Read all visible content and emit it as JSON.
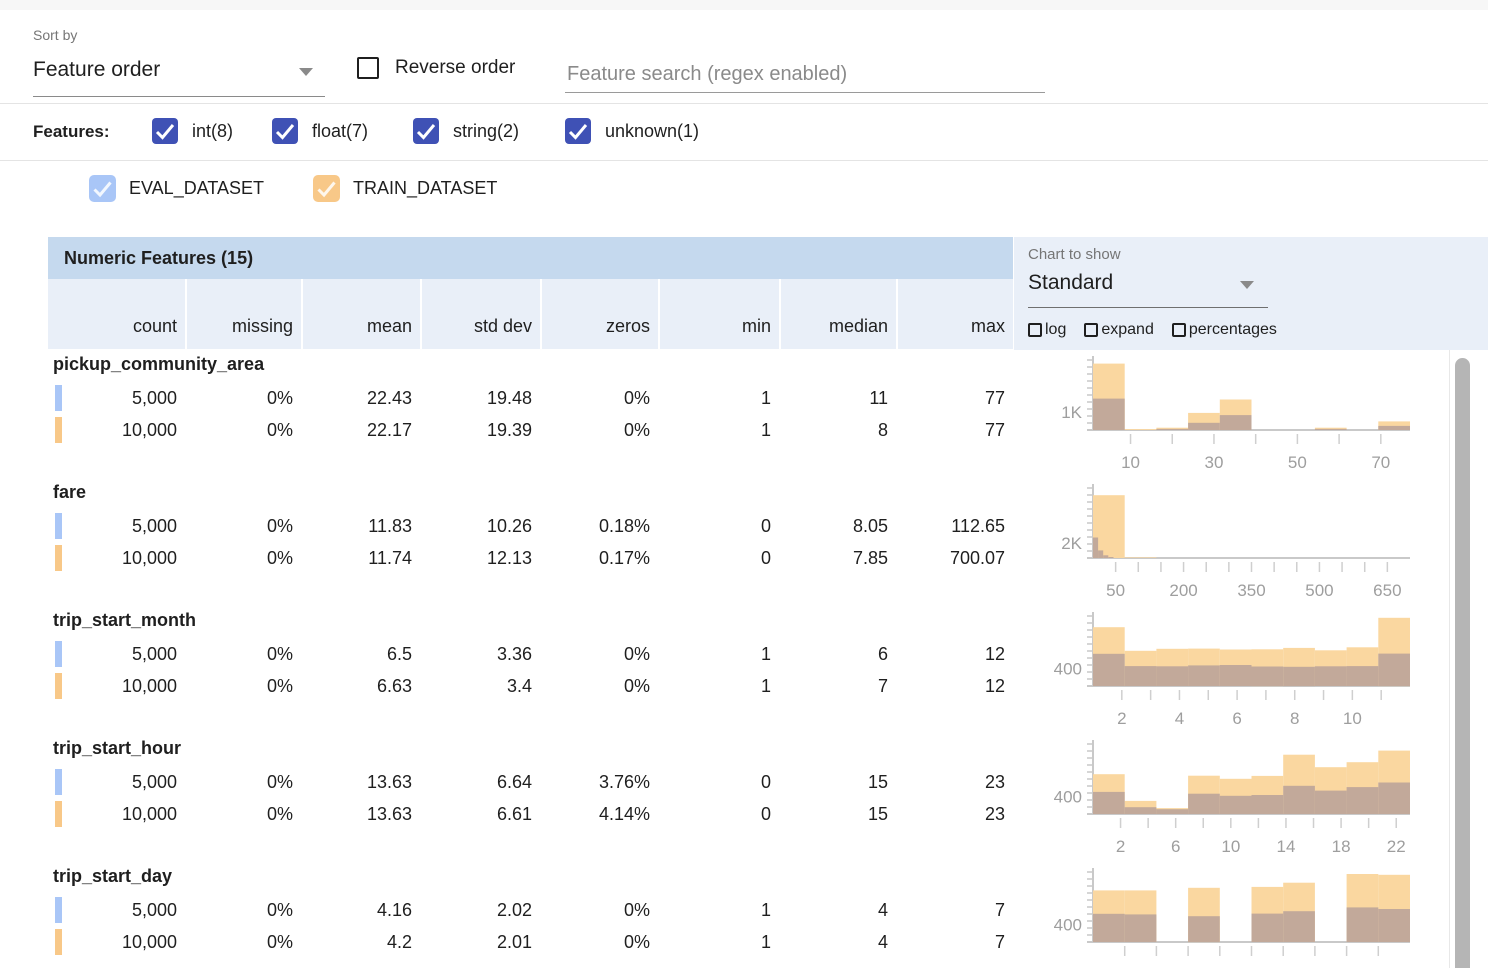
{
  "colors": {
    "accent_indigo": "#3f51b5",
    "eval_dataset": "#a9c6f7",
    "train_dataset": "#f8c888",
    "train_hist": "#fad7a0",
    "overlap_hist": "#c2a99a",
    "table_header_bg": "#c5d9ee",
    "subheader_bg": "#e9eff8",
    "axis_gray": "#c9c9c9",
    "axis_label_gray": "#9e9e9e"
  },
  "toolbar": {
    "sort_by_label": "Sort by",
    "sort_by_value": "Feature order",
    "reverse_order_label": "Reverse order",
    "reverse_order_checked": false,
    "search_placeholder": "Feature search (regex enabled)"
  },
  "filters": {
    "label": "Features:",
    "types": [
      {
        "label": "int(8)",
        "checked": true
      },
      {
        "label": "float(7)",
        "checked": true
      },
      {
        "label": "string(2)",
        "checked": true
      },
      {
        "label": "unknown(1)",
        "checked": true
      }
    ]
  },
  "datasets": [
    {
      "name": "EVAL_DATASET",
      "checked": true,
      "color": "#a9c6f7"
    },
    {
      "name": "TRAIN_DATASET",
      "checked": true,
      "color": "#f8c888"
    }
  ],
  "chart_controls": {
    "label": "Chart to show",
    "selected": "Standard",
    "toggles": [
      {
        "label": "log",
        "checked": false
      },
      {
        "label": "expand",
        "checked": false
      },
      {
        "label": "percentages",
        "checked": false
      }
    ]
  },
  "table": {
    "title": "Numeric Features (15)",
    "columns": [
      "count",
      "missing",
      "mean",
      "std dev",
      "zeros",
      "min",
      "median",
      "max"
    ],
    "features": [
      {
        "name": "pickup_community_area",
        "rows": [
          {
            "dataset": "EVAL_DATASET",
            "values": [
              "5,000",
              "0%",
              "22.43",
              "19.48",
              "0%",
              "1",
              "11",
              "77"
            ]
          },
          {
            "dataset": "TRAIN_DATASET",
            "values": [
              "10,000",
              "0%",
              "22.17",
              "19.39",
              "0%",
              "1",
              "8",
              "77"
            ]
          }
        ]
      },
      {
        "name": "fare",
        "rows": [
          {
            "dataset": "EVAL_DATASET",
            "values": [
              "5,000",
              "0%",
              "11.83",
              "10.26",
              "0.18%",
              "0",
              "8.05",
              "112.65"
            ]
          },
          {
            "dataset": "TRAIN_DATASET",
            "values": [
              "10,000",
              "0%",
              "11.74",
              "12.13",
              "0.17%",
              "0",
              "7.85",
              "700.07"
            ]
          }
        ]
      },
      {
        "name": "trip_start_month",
        "rows": [
          {
            "dataset": "EVAL_DATASET",
            "values": [
              "5,000",
              "0%",
              "6.5",
              "3.36",
              "0%",
              "1",
              "6",
              "12"
            ]
          },
          {
            "dataset": "TRAIN_DATASET",
            "values": [
              "10,000",
              "0%",
              "6.63",
              "3.4",
              "0%",
              "1",
              "7",
              "12"
            ]
          }
        ]
      },
      {
        "name": "trip_start_hour",
        "rows": [
          {
            "dataset": "EVAL_DATASET",
            "values": [
              "5,000",
              "0%",
              "13.63",
              "6.64",
              "3.76%",
              "0",
              "15",
              "23"
            ]
          },
          {
            "dataset": "TRAIN_DATASET",
            "values": [
              "10,000",
              "0%",
              "13.63",
              "6.61",
              "4.14%",
              "0",
              "15",
              "23"
            ]
          }
        ]
      },
      {
        "name": "trip_start_day",
        "rows": [
          {
            "dataset": "EVAL_DATASET",
            "values": [
              "5,000",
              "0%",
              "4.16",
              "2.02",
              "0%",
              "1",
              "4",
              "7"
            ]
          },
          {
            "dataset": "TRAIN_DATASET",
            "values": [
              "10,000",
              "0%",
              "4.2",
              "2.01",
              "0%",
              "1",
              "4",
              "7"
            ]
          }
        ]
      }
    ]
  },
  "chart_data": [
    {
      "feature": "pickup_community_area",
      "type": "bar",
      "y_axis_label": "1K",
      "y_label_value": 1000,
      "y_max": 3900,
      "x_range": [
        1,
        77
      ],
      "x_ticks": [
        {
          "v": 10,
          "label": "10"
        },
        {
          "v": 20,
          "label": ""
        },
        {
          "v": 30,
          "label": "30"
        },
        {
          "v": 40,
          "label": ""
        },
        {
          "v": 50,
          "label": "50"
        },
        {
          "v": 60,
          "label": ""
        },
        {
          "v": 70,
          "label": "70"
        }
      ],
      "series": [
        {
          "name": "TRAIN_DATASET",
          "x0": 1,
          "bin_width": 7.6,
          "counts": [
            3700,
            50,
            130,
            950,
            1700,
            20,
            20,
            130,
            20,
            480
          ]
        },
        {
          "name": "EVAL_DATASET_overlap",
          "x0": 1,
          "bin_width": 7.6,
          "counts": [
            1750,
            25,
            60,
            400,
            830,
            10,
            10,
            60,
            10,
            230
          ]
        }
      ]
    },
    {
      "feature": "fare",
      "type": "bar",
      "y_axis_label": "2K",
      "y_label_value": 2000,
      "y_max": 9200,
      "x_range": [
        0,
        700
      ],
      "x_ticks": [
        {
          "v": 50,
          "label": "50"
        },
        {
          "v": 100,
          "label": ""
        },
        {
          "v": 150,
          "label": ""
        },
        {
          "v": 200,
          "label": "200"
        },
        {
          "v": 250,
          "label": ""
        },
        {
          "v": 300,
          "label": ""
        },
        {
          "v": 350,
          "label": "350"
        },
        {
          "v": 400,
          "label": ""
        },
        {
          "v": 450,
          "label": ""
        },
        {
          "v": 500,
          "label": "500"
        },
        {
          "v": 550,
          "label": ""
        },
        {
          "v": 600,
          "label": ""
        },
        {
          "v": 650,
          "label": "650"
        }
      ],
      "series": [
        {
          "name": "TRAIN_DATASET",
          "x0": 0,
          "bin_width": 70,
          "counts": [
            8250,
            80,
            0,
            0,
            0,
            0,
            0,
            0,
            0,
            0
          ]
        },
        {
          "name": "EVAL_DATASET_overlap",
          "x0": 0,
          "bin_width": 11.3,
          "counts": [
            2700,
            1000,
            350,
            130,
            60,
            25,
            12,
            6,
            3,
            2
          ]
        }
      ]
    },
    {
      "feature": "trip_start_month",
      "type": "bar",
      "y_axis_label": "400",
      "y_label_value": 400,
      "y_max": 1600,
      "x_range": [
        1,
        12
      ],
      "x_ticks": [
        {
          "v": 2,
          "label": "2"
        },
        {
          "v": 3,
          "label": ""
        },
        {
          "v": 4,
          "label": "4"
        },
        {
          "v": 5,
          "label": ""
        },
        {
          "v": 6,
          "label": "6"
        },
        {
          "v": 7,
          "label": ""
        },
        {
          "v": 8,
          "label": "8"
        },
        {
          "v": 9,
          "label": ""
        },
        {
          "v": 10,
          "label": "10"
        },
        {
          "v": 11,
          "label": ""
        }
      ],
      "series": [
        {
          "name": "TRAIN_DATASET",
          "x0": 1,
          "bin_width": 1.1,
          "counts": [
            1345,
            805,
            850,
            855,
            835,
            840,
            870,
            815,
            885,
            1560
          ]
        },
        {
          "name": "EVAL_DATASET_overlap",
          "x0": 1,
          "bin_width": 1.1,
          "counts": [
            735,
            455,
            450,
            470,
            480,
            445,
            440,
            450,
            455,
            740
          ]
        }
      ]
    },
    {
      "feature": "trip_start_hour",
      "type": "bar",
      "y_axis_label": "400",
      "y_label_value": 400,
      "y_max": 1600,
      "x_range": [
        0,
        23
      ],
      "x_ticks": [
        {
          "v": 2,
          "label": "2"
        },
        {
          "v": 4,
          "label": ""
        },
        {
          "v": 6,
          "label": "6"
        },
        {
          "v": 8,
          "label": ""
        },
        {
          "v": 10,
          "label": "10"
        },
        {
          "v": 12,
          "label": ""
        },
        {
          "v": 14,
          "label": "14"
        },
        {
          "v": 16,
          "label": ""
        },
        {
          "v": 18,
          "label": "18"
        },
        {
          "v": 20,
          "label": ""
        },
        {
          "v": 22,
          "label": "22"
        }
      ],
      "series": [
        {
          "name": "TRAIN_DATASET",
          "x0": 0,
          "bin_width": 2.3,
          "counts": [
            910,
            300,
            135,
            875,
            805,
            870,
            1355,
            1070,
            1185,
            1450
          ]
        },
        {
          "name": "EVAL_DATASET_overlap",
          "x0": 0,
          "bin_width": 2.3,
          "counts": [
            505,
            155,
            110,
            465,
            415,
            435,
            645,
            535,
            615,
            720
          ]
        }
      ]
    },
    {
      "feature": "trip_start_day",
      "type": "bar",
      "y_axis_label": "400",
      "y_label_value": 400,
      "y_max": 1600,
      "x_range": [
        1,
        7
      ],
      "x_ticks": [
        {
          "v": 1.6,
          "label": ""
        },
        {
          "v": 2.2,
          "label": ""
        },
        {
          "v": 2.8,
          "label": ""
        },
        {
          "v": 3.4,
          "label": ""
        },
        {
          "v": 4,
          "label": ""
        },
        {
          "v": 4.6,
          "label": ""
        },
        {
          "v": 5.2,
          "label": ""
        },
        {
          "v": 5.8,
          "label": ""
        },
        {
          "v": 6.4,
          "label": ""
        }
      ],
      "series": [
        {
          "name": "TRAIN_DATASET",
          "x0": 1,
          "bin_width": 0.6,
          "counts": [
            1180,
            1180,
            0,
            1240,
            0,
            1260,
            1355,
            0,
            1555,
            1535
          ]
        },
        {
          "name": "EVAL_DATASET_overlap",
          "x0": 1,
          "bin_width": 0.6,
          "counts": [
            645,
            630,
            0,
            590,
            0,
            650,
            705,
            0,
            790,
            755
          ]
        }
      ]
    }
  ]
}
